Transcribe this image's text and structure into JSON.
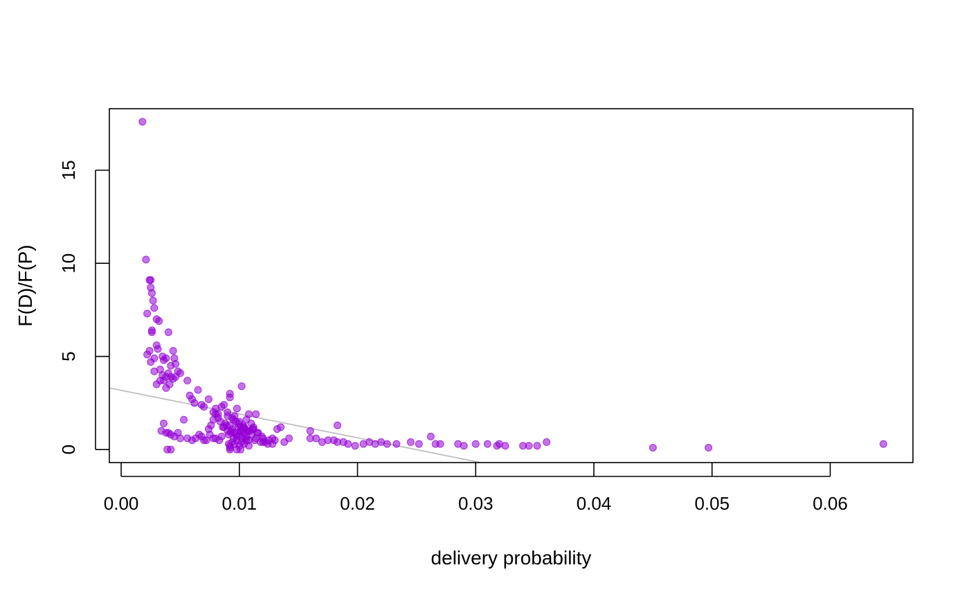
{
  "chart_data": {
    "type": "scatter",
    "title": "",
    "xlabel": "delivery probability",
    "ylabel": "F(D)/F(P)",
    "xlim": [
      -0.001,
      0.067
    ],
    "ylim": [
      -0.7,
      18.3
    ],
    "xticks": [
      "0.00",
      "0.01",
      "0.02",
      "0.03",
      "0.04",
      "0.05",
      "0.06"
    ],
    "xtick_values": [
      0,
      0.01,
      0.02,
      0.03,
      0.04,
      0.05,
      0.06
    ],
    "yticks": [
      "0",
      "5",
      "10",
      "15"
    ],
    "ytick_values": [
      0,
      5,
      10,
      15
    ],
    "grid": false,
    "point_color": "#9400D3",
    "trend_line": {
      "intercept": 3.18,
      "slope": -127.5,
      "color": "#BEBEBE"
    },
    "x": [
      0.0018,
      0.0021,
      0.0022,
      0.0024,
      0.0025,
      0.0025,
      0.0026,
      0.0026,
      0.0027,
      0.0028,
      0.003,
      0.0032,
      0.0024,
      0.0026,
      0.0028,
      0.003,
      0.0022,
      0.0025,
      0.0031,
      0.0033,
      0.0035,
      0.0036,
      0.0038,
      0.004,
      0.004,
      0.0042,
      0.0044,
      0.0045,
      0.0046,
      0.0048,
      0.005,
      0.0036,
      0.0038,
      0.0042,
      0.0046,
      0.0033,
      0.0035,
      0.003,
      0.0028,
      0.0038,
      0.0041,
      0.0044,
      0.0056,
      0.0058,
      0.006,
      0.0062,
      0.0065,
      0.0068,
      0.007,
      0.0074,
      0.0078,
      0.008,
      0.0082,
      0.0085,
      0.0087,
      0.009,
      0.0092,
      0.0094,
      0.0096,
      0.0098,
      0.01,
      0.0102,
      0.0104,
      0.0106,
      0.0108,
      0.011,
      0.0112,
      0.0114,
      0.0092,
      0.0102,
      0.0034,
      0.0036,
      0.0038,
      0.004,
      0.0042,
      0.0045,
      0.0048,
      0.005,
      0.0053,
      0.0056,
      0.006,
      0.0063,
      0.0066,
      0.0068,
      0.007,
      0.0072,
      0.0075,
      0.0078,
      0.008,
      0.0083,
      0.0085,
      0.0087,
      0.0088,
      0.009,
      0.0091,
      0.0092,
      0.0093,
      0.0094,
      0.0095,
      0.0096,
      0.0097,
      0.0098,
      0.0099,
      0.01,
      0.0101,
      0.0102,
      0.0103,
      0.0104,
      0.0105,
      0.0106,
      0.0107,
      0.0108,
      0.011,
      0.0112,
      0.0114,
      0.0116,
      0.0118,
      0.012,
      0.0122,
      0.0125,
      0.0128,
      0.0132,
      0.0135,
      0.0138,
      0.0142,
      0.0091,
      0.0092,
      0.0094,
      0.0096,
      0.0098,
      0.01,
      0.0102,
      0.0104,
      0.0106,
      0.0108,
      0.009,
      0.0095,
      0.0099,
      0.0103,
      0.0107,
      0.0111,
      0.0115,
      0.0119,
      0.0089,
      0.0093,
      0.0097,
      0.0101,
      0.0105,
      0.0109,
      0.0113,
      0.0086,
      0.0084,
      0.0082,
      0.008,
      0.0078,
      0.0076,
      0.0074,
      0.012,
      0.0124,
      0.0128,
      0.013,
      0.0098,
      0.0092,
      0.0101,
      0.0092,
      0.0039,
      0.0042,
      0.016,
      0.0165,
      0.017,
      0.0175,
      0.018,
      0.0183,
      0.0188,
      0.0192,
      0.0198,
      0.0205,
      0.021,
      0.0215,
      0.022,
      0.0225,
      0.0233,
      0.0245,
      0.0252,
      0.0262,
      0.0266,
      0.027,
      0.0285,
      0.029,
      0.03,
      0.031,
      0.0318,
      0.032,
      0.0325,
      0.034,
      0.0345,
      0.0352,
      0.036,
      0.045,
      0.0497,
      0.0645,
      0.016,
      0.0183
    ],
    "y": [
      17.6,
      10.2,
      7.3,
      9.1,
      9.1,
      8.7,
      8.4,
      6.4,
      8.0,
      7.6,
      7.0,
      6.9,
      5.3,
      6.3,
      4.9,
      5.6,
      5.1,
      4.7,
      5.4,
      4.3,
      5.0,
      4.8,
      4.9,
      6.3,
      4.1,
      4.5,
      5.3,
      4.9,
      4.6,
      4.2,
      4.1,
      3.7,
      3.9,
      3.9,
      3.9,
      3.7,
      4.0,
      3.5,
      4.2,
      3.3,
      3.5,
      3.8,
      3.7,
      2.9,
      2.7,
      2.5,
      3.2,
      2.4,
      2.3,
      2.7,
      2.0,
      2.2,
      1.9,
      2.3,
      2.4,
      2.0,
      2.8,
      1.7,
      1.8,
      2.2,
      1.5,
      3.4,
      1.2,
      1.6,
      1.9,
      1.4,
      1.1,
      1.9,
      3.0,
      1.0,
      1.0,
      1.4,
      0.9,
      0.9,
      0.8,
      0.7,
      0.9,
      0.6,
      1.6,
      0.6,
      0.5,
      0.6,
      0.8,
      0.7,
      0.5,
      0.5,
      0.8,
      0.6,
      0.6,
      0.5,
      0.7,
      1.2,
      1.4,
      1.0,
      0.8,
      1.3,
      0.9,
      1.1,
      0.6,
      0.9,
      1.5,
      0.7,
      1.2,
      0.8,
      1.0,
      0.6,
      1.3,
      0.9,
      1.1,
      0.7,
      1.0,
      0.5,
      0.8,
      1.2,
      0.6,
      0.9,
      0.4,
      0.6,
      0.4,
      0.5,
      0.3,
      1.1,
      1.2,
      0.4,
      0.6,
      0.3,
      0.2,
      0.4,
      0.3,
      0.5,
      0.2,
      0.4,
      0.3,
      0.5,
      0.2,
      1.8,
      1.6,
      1.4,
      1.2,
      1.0,
      1.1,
      0.9,
      0.7,
      1.3,
      1.0,
      0.8,
      1.2,
      0.6,
      1.0,
      0.5,
      1.2,
      1.5,
      1.7,
      1.9,
      1.6,
      1.3,
      1.1,
      0.4,
      0.3,
      0.6,
      0.5,
      0.0,
      0.0,
      0.0,
      0.1,
      0.0,
      0.0,
      0.6,
      0.6,
      0.4,
      0.5,
      0.5,
      0.4,
      0.4,
      0.3,
      0.2,
      0.3,
      0.4,
      0.3,
      0.4,
      0.3,
      0.3,
      0.4,
      0.3,
      0.7,
      0.3,
      0.3,
      0.3,
      0.2,
      0.3,
      0.3,
      0.2,
      0.3,
      0.2,
      0.2,
      0.2,
      0.2,
      0.4,
      0.1,
      0.1,
      0.3,
      1.0,
      1.3
    ]
  }
}
